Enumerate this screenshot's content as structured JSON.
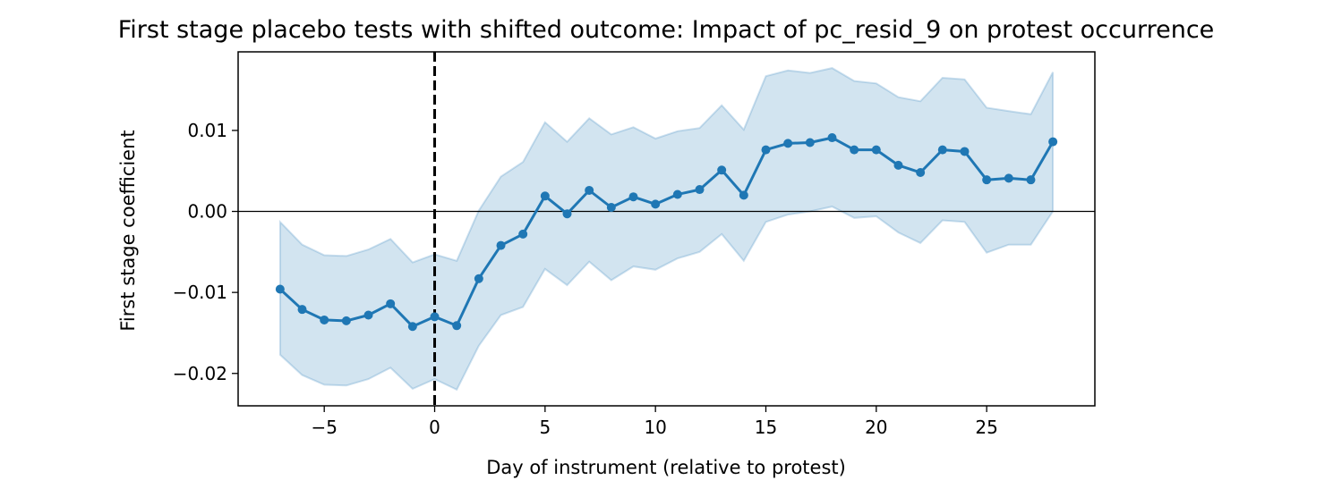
{
  "chart_data": {
    "type": "line",
    "title": "First stage placebo tests with shifted outcome: Impact of pc_resid_9 on protest occurrence",
    "xlabel": "Day of instrument (relative to protest)",
    "ylabel": "First stage coefficient",
    "xlim": [
      -8.9,
      29.9
    ],
    "ylim": [
      -0.024,
      0.0197
    ],
    "xticks": [
      -5,
      0,
      5,
      10,
      15,
      20,
      25
    ],
    "xtick_labels": [
      "−5",
      "0",
      "5",
      "10",
      "15",
      "20",
      "25"
    ],
    "yticks": [
      -0.02,
      -0.01,
      0.0,
      0.01
    ],
    "ytick_labels": [
      "−0.02",
      "−0.01",
      "0.00",
      "0.01"
    ],
    "grid": false,
    "reference_lines": [
      {
        "orientation": "vertical",
        "value": 0,
        "style": "dashed",
        "color": "#000000"
      },
      {
        "orientation": "horizontal",
        "value": 0,
        "style": "solid",
        "color": "#000000"
      }
    ],
    "colors": {
      "line": "#1f77b4",
      "band": "#1f77b4",
      "band_opacity": 0.2
    },
    "series": [
      {
        "x": [
          -7,
          -6,
          -5,
          -4,
          -3,
          -2,
          -1,
          0,
          1,
          2,
          3,
          4,
          5,
          6,
          7,
          8,
          9,
          10,
          11,
          12,
          13,
          14,
          15,
          16,
          17,
          18,
          19,
          20,
          21,
          22,
          23,
          24,
          25,
          26,
          27,
          28
        ],
        "y": [
          -0.0096,
          -0.0121,
          -0.0134,
          -0.0135,
          -0.0128,
          -0.0114,
          -0.0142,
          -0.013,
          -0.0141,
          -0.0083,
          -0.0042,
          -0.0028,
          0.0019,
          -0.0003,
          0.0026,
          0.0005,
          0.0018,
          0.0009,
          0.0021,
          0.0027,
          0.0051,
          0.002,
          0.0076,
          0.0084,
          0.0085,
          0.0091,
          0.0076,
          0.0076,
          0.0057,
          0.0048,
          0.0076,
          0.0074,
          0.0039,
          0.0041,
          0.0039,
          0.0086
        ],
        "lower": [
          -0.0177,
          -0.0202,
          -0.0214,
          -0.0215,
          -0.0207,
          -0.0193,
          -0.0219,
          -0.0207,
          -0.022,
          -0.0166,
          -0.0128,
          -0.0118,
          -0.0071,
          -0.0091,
          -0.0062,
          -0.0085,
          -0.0068,
          -0.0072,
          -0.0058,
          -0.005,
          -0.0028,
          -0.0061,
          -0.0013,
          -0.0004,
          0.0,
          0.0006,
          -0.0008,
          -0.0006,
          -0.0026,
          -0.0039,
          -0.0011,
          -0.0013,
          -0.0051,
          -0.0041,
          -0.0041,
          0.0
        ],
        "upper": [
          -0.0013,
          -0.0041,
          -0.0054,
          -0.0055,
          -0.0047,
          -0.0034,
          -0.0063,
          -0.0053,
          -0.0061,
          0.0001,
          0.0043,
          0.0061,
          0.011,
          0.0086,
          0.0115,
          0.0095,
          0.0104,
          0.009,
          0.0099,
          0.0103,
          0.0131,
          0.0101,
          0.0167,
          0.0174,
          0.0171,
          0.0177,
          0.0161,
          0.0158,
          0.0141,
          0.0136,
          0.0165,
          0.0163,
          0.0128,
          0.0124,
          0.012,
          0.0172
        ]
      }
    ]
  }
}
